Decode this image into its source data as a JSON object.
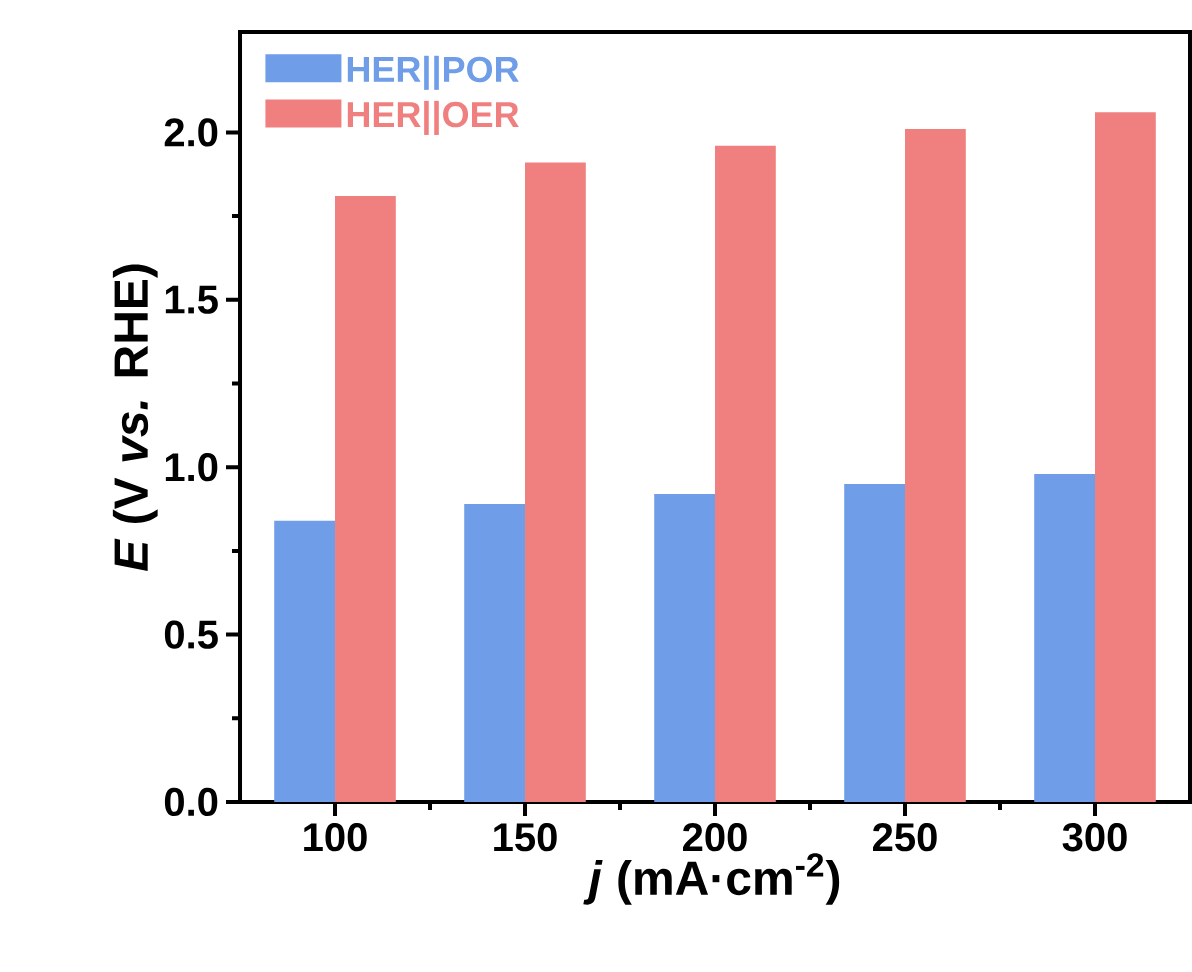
{
  "chart_data": {
    "type": "bar",
    "xlabel": "*j* (mA·cm$^{-2}$)",
    "ylabel": "*E* (V *vs.* RHE)",
    "categories": [
      "100",
      "150",
      "200",
      "250",
      "300"
    ],
    "series": [
      {
        "name": "HER||POR",
        "color": "#6f9de8",
        "values": [
          0.84,
          0.89,
          0.92,
          0.95,
          0.98
        ]
      },
      {
        "name": "HER||OER",
        "color": "#f08080",
        "values": [
          1.81,
          1.91,
          1.96,
          2.01,
          2.06
        ]
      }
    ],
    "ylim": [
      0,
      2.3
    ],
    "yticks": [
      {
        "value": 0,
        "label": "0.0"
      },
      {
        "value": 0.5,
        "label": "0.5"
      },
      {
        "value": 1,
        "label": "1.0"
      },
      {
        "value": 1.5,
        "label": "1.5"
      },
      {
        "value": 2,
        "label": "2.0"
      }
    ],
    "legend": "top left"
  }
}
